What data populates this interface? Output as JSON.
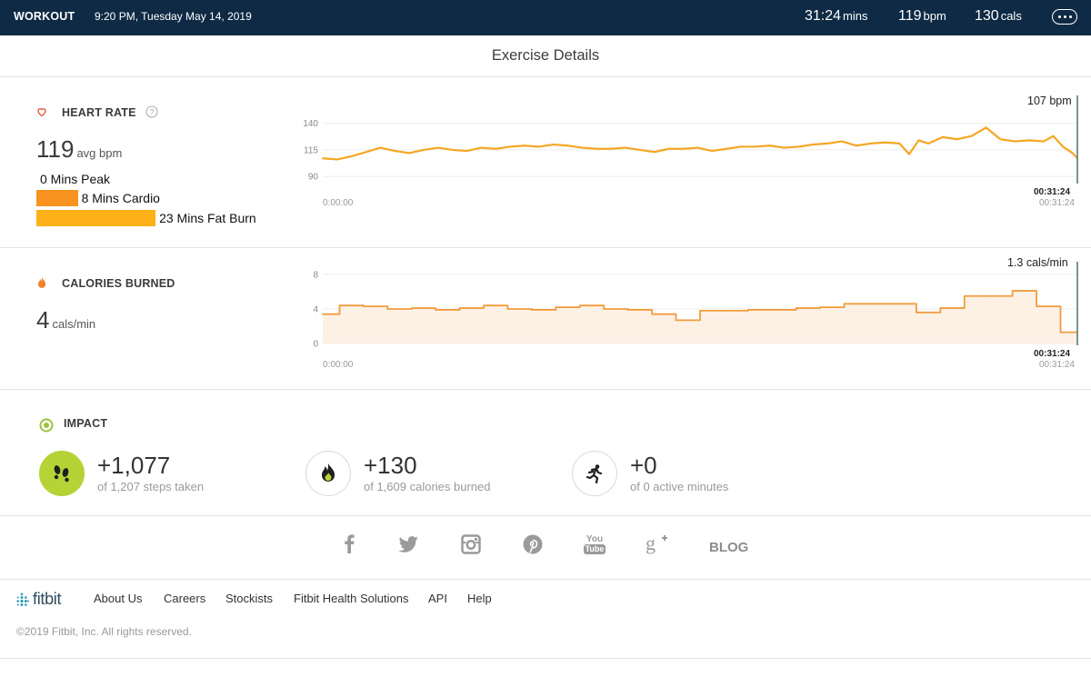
{
  "header": {
    "brand": "WORKOUT",
    "datetime": "9:20 PM, Tuesday May 14, 2019",
    "duration_value": "31:24",
    "duration_unit": "mins",
    "hr_value": "119",
    "hr_unit": "bpm",
    "cals_value": "130",
    "cals_unit": "cals",
    "more_icon": "more-options-icon"
  },
  "page_title": "Exercise Details",
  "heart_rate": {
    "label": "HEART RATE",
    "avg_value": "119",
    "avg_unit": "avg bpm",
    "zones": [
      {
        "label": "0 Mins Peak",
        "minutes": 0,
        "color": "#f15a24"
      },
      {
        "label": "8 Mins Cardio",
        "minutes": 8,
        "color": "#f7931e"
      },
      {
        "label": "23 Mins Fat Burn",
        "minutes": 23,
        "color": "#fbb117"
      }
    ],
    "end_value": "107 bpm",
    "start_time": "0:00:00",
    "end_time": "00:31:24",
    "end_time_marker": "00:31:24",
    "icons": {
      "heart": "heart-icon",
      "help": "help-icon"
    }
  },
  "calories": {
    "label": "CALORIES BURNED",
    "avg_value": "4",
    "avg_unit": "cals/min",
    "end_value": "1.3 cals/min",
    "start_time": "0:00:00",
    "end_time": "00:31:24",
    "end_time_marker": "00:31:24",
    "icons": {
      "flame": "flame-icon"
    }
  },
  "impact": {
    "label": "IMPACT",
    "items": [
      {
        "value": "+1,077",
        "sub": "of 1,207 steps taken",
        "icon": "footsteps-icon",
        "progress": 0.89
      },
      {
        "value": "+130",
        "sub": "of 1,609 calories burned",
        "icon": "flame-icon",
        "progress": 0.08
      },
      {
        "value": "+0",
        "sub": "of 0 active minutes",
        "icon": "running-icon",
        "progress": 0
      }
    ]
  },
  "social": {
    "icons": [
      "facebook-icon",
      "twitter-icon",
      "instagram-icon",
      "pinterest-icon",
      "youtube-icon",
      "google-plus-icon"
    ],
    "youtube_top": "You",
    "youtube_bottom": "Tube",
    "blog_label": "BLOG"
  },
  "footer": {
    "logo_text": "fitbit",
    "links": [
      "About Us",
      "Careers",
      "Stockists",
      "Fitbit Health Solutions",
      "API",
      "Help"
    ],
    "copyright": "©2019 Fitbit, Inc. All rights reserved."
  },
  "chart_data": [
    {
      "type": "line",
      "title": "HEART RATE",
      "xlabel": "",
      "ylabel": "",
      "x_unit": "minutes",
      "xlim": [
        0,
        31.4
      ],
      "ylim": [
        85,
        150
      ],
      "yticks": [
        90,
        115,
        140
      ],
      "grid": true,
      "color": "#f5a623",
      "series": [
        {
          "x": [
            0,
            0.6,
            1.2,
            1.8,
            2.4,
            3.0,
            3.6,
            4.2,
            4.8,
            5.4,
            6.0,
            6.6,
            7.2,
            7.8,
            8.4,
            9.0,
            9.6,
            10.2,
            10.8,
            11.4,
            12.0,
            12.6,
            13.2,
            13.8,
            14.4,
            15.0,
            15.6,
            16.2,
            16.8,
            17.4,
            18.0,
            18.6,
            19.2,
            19.8,
            20.4,
            21.0,
            21.6,
            22.2,
            22.8,
            23.4,
            24.0,
            24.4,
            24.8,
            25.2,
            25.8,
            26.4,
            27.0,
            27.6,
            28.2,
            28.8,
            29.4,
            30.0,
            30.4,
            30.8,
            31.2,
            31.4
          ],
          "y": [
            107,
            106,
            109,
            113,
            117,
            114,
            112,
            115,
            117,
            115,
            114,
            117,
            116,
            118,
            119,
            118,
            120,
            119,
            117,
            116,
            116,
            117,
            115,
            113,
            116,
            116,
            117,
            114,
            116,
            118,
            118,
            119,
            117,
            118,
            120,
            121,
            123,
            119,
            121,
            122,
            121,
            111,
            124,
            121,
            127,
            125,
            128,
            136,
            125,
            123,
            124,
            123,
            128,
            118,
            112,
            107
          ]
        }
      ]
    },
    {
      "type": "area",
      "title": "CALORIES BURNED",
      "xlabel": "",
      "ylabel": "",
      "x_unit": "minutes",
      "xlim": [
        0,
        31.4
      ],
      "ylim": [
        0,
        8
      ],
      "yticks": [
        0,
        4,
        8
      ],
      "grid": true,
      "color": "#f39c3c",
      "series": [
        {
          "x": [
            0,
            0.7,
            1.7,
            2.7,
            3.7,
            4.7,
            5.7,
            6.7,
            7.7,
            8.7,
            9.7,
            10.7,
            11.7,
            12.7,
            13.7,
            14.7,
            15.7,
            16.7,
            17.7,
            18.7,
            19.7,
            20.7,
            21.7,
            22.7,
            23.7,
            24.7,
            25.7,
            26.7,
            27.7,
            28.7,
            29.7,
            30.7,
            31.4
          ],
          "y": [
            3.4,
            4.4,
            4.3,
            4.0,
            4.1,
            3.9,
            4.1,
            4.4,
            4.0,
            3.9,
            4.2,
            4.4,
            4.0,
            3.9,
            3.4,
            2.7,
            3.8,
            3.8,
            3.9,
            3.9,
            4.1,
            4.2,
            4.6,
            4.6,
            4.6,
            3.6,
            4.1,
            5.5,
            5.5,
            6.1,
            4.3,
            1.3,
            1.3
          ]
        }
      ]
    }
  ]
}
